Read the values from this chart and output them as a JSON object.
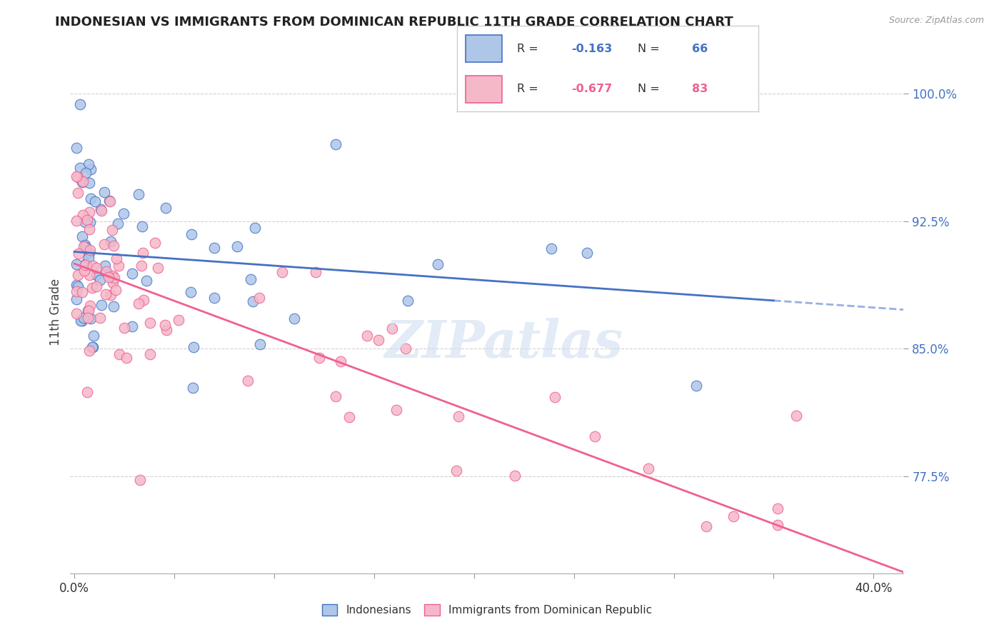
{
  "title": "INDONESIAN VS IMMIGRANTS FROM DOMINICAN REPUBLIC 11TH GRADE CORRELATION CHART",
  "source": "Source: ZipAtlas.com",
  "ylabel": "11th Grade",
  "ytick_values": [
    1.0,
    0.925,
    0.85,
    0.775
  ],
  "ytick_labels": [
    "100.0%",
    "92.5%",
    "85.0%",
    "77.5%"
  ],
  "xlim": [
    -0.002,
    0.415
  ],
  "ylim": [
    0.718,
    1.025
  ],
  "legend_label1": "Indonesians",
  "legend_label2": "Immigrants from Dominican Republic",
  "r1": -0.163,
  "n1": 66,
  "r2": -0.677,
  "n2": 83,
  "color1": "#aec6e8",
  "color2": "#f5b8c8",
  "line_color1": "#4472c4",
  "line_color2": "#f06090",
  "background_color": "#ffffff",
  "line1_intercept": 0.907,
  "line1_slope": -0.082,
  "line2_intercept": 0.9,
  "line2_slope": -0.437,
  "line1_x_end": 0.35,
  "line1_dash_end": 0.415,
  "line2_x_end": 0.415,
  "watermark": "ZIPatlas",
  "watermark_color": "#d0dff0"
}
